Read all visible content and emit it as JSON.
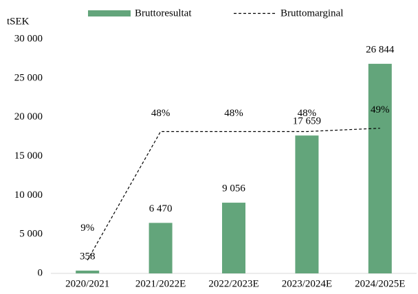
{
  "chart_data": {
    "type": "combo",
    "y_label": "tSEK",
    "categories": [
      "2020/2021",
      "2021/2022E",
      "2022/2023E",
      "2023/2024E",
      "2024/2025E"
    ],
    "series": [
      {
        "name": "Bruttoresultat",
        "type": "bar",
        "color": "#63a57b",
        "values": [
          358,
          6470,
          9056,
          17659,
          26844
        ],
        "value_labels": [
          "358",
          "6 470",
          "9 056",
          "17 659",
          "26 844"
        ]
      },
      {
        "name": "Bruttomarginal",
        "type": "line",
        "axis": "y2",
        "color": "#000000",
        "values": [
          9,
          48,
          48,
          48,
          49
        ],
        "value_labels": [
          "9%",
          "48%",
          "48%",
          "48%",
          "49%"
        ]
      }
    ],
    "ylim": [
      0,
      30000
    ],
    "yticks": [
      0,
      {
        "value": 5000,
        "label": "5 000"
      },
      {
        "value": 10000,
        "label": "10 000"
      },
      {
        "value": 15000,
        "label": "15 000"
      },
      {
        "value": 20000,
        "label": "20 000"
      },
      {
        "value": 25000,
        "label": "25 000"
      },
      {
        "value": 30000,
        "label": "30 000"
      }
    ],
    "y2lim": [
      5,
      76
    ],
    "legend": "top",
    "grid": false
  }
}
